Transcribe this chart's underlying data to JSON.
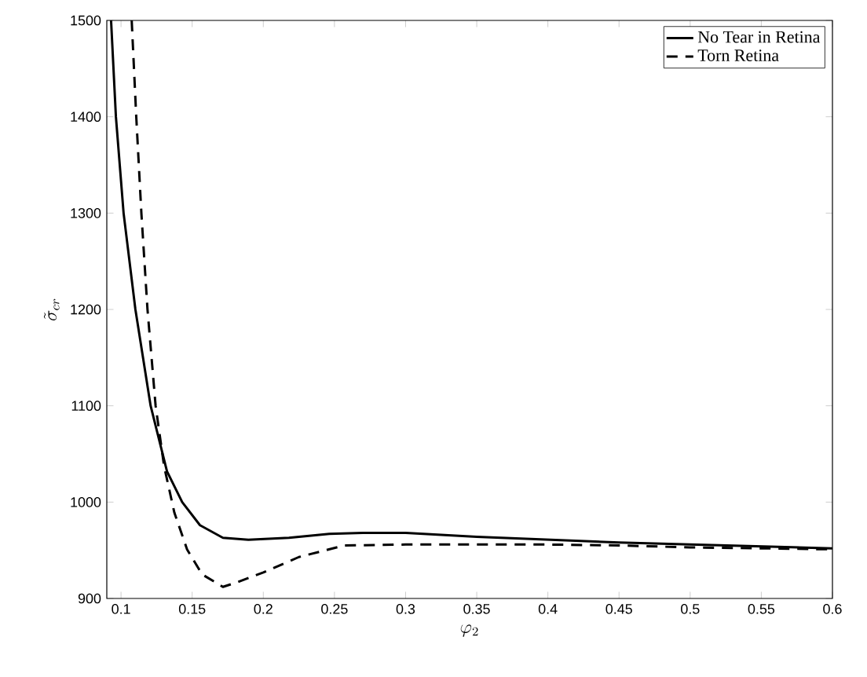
{
  "chart_data": {
    "type": "line",
    "xlabel": "\\varphi_2",
    "ylabel": "\\tilde{\\sigma}_{cr}",
    "xlim": [
      0.09,
      0.6
    ],
    "ylim": [
      900,
      1500
    ],
    "xticks": [
      0.1,
      0.15,
      0.2,
      0.25,
      0.3,
      0.35,
      0.4,
      0.45,
      0.5,
      0.55,
      0.6
    ],
    "yticks": [
      900,
      1000,
      1100,
      1200,
      1300,
      1400,
      1500
    ],
    "legend": "top right",
    "series": [
      {
        "name": "No Tear in Retina",
        "color": "#000000",
        "line_style": "solid",
        "x": [
          0.093,
          0.0964,
          0.1018,
          0.1101,
          0.1208,
          0.1323,
          0.143,
          0.1555,
          0.1716,
          0.1895,
          0.218,
          0.2464,
          0.27,
          0.3,
          0.35,
          0.4,
          0.45,
          0.5,
          0.55,
          0.6
        ],
        "values": [
          1500,
          1400,
          1300,
          1200,
          1100,
          1032,
          1000,
          976,
          963,
          961,
          963,
          967,
          968,
          968,
          964,
          961,
          958,
          956,
          954,
          952
        ]
      },
      {
        "name": "Torn Retina",
        "color": "#000000",
        "line_style": "dashed",
        "x": [
          0.1075,
          0.1107,
          0.1143,
          0.1186,
          0.1243,
          0.1303,
          0.1375,
          0.1464,
          0.157,
          0.1716,
          0.182,
          0.2,
          0.225,
          0.257,
          0.3,
          0.35,
          0.4,
          0.45,
          0.5,
          0.55,
          0.6
        ],
        "values": [
          1500,
          1400,
          1300,
          1200,
          1100,
          1037,
          989,
          951,
          925,
          912,
          917,
          927,
          943,
          955,
          956,
          956,
          956,
          955,
          953,
          952,
          951
        ]
      }
    ]
  }
}
